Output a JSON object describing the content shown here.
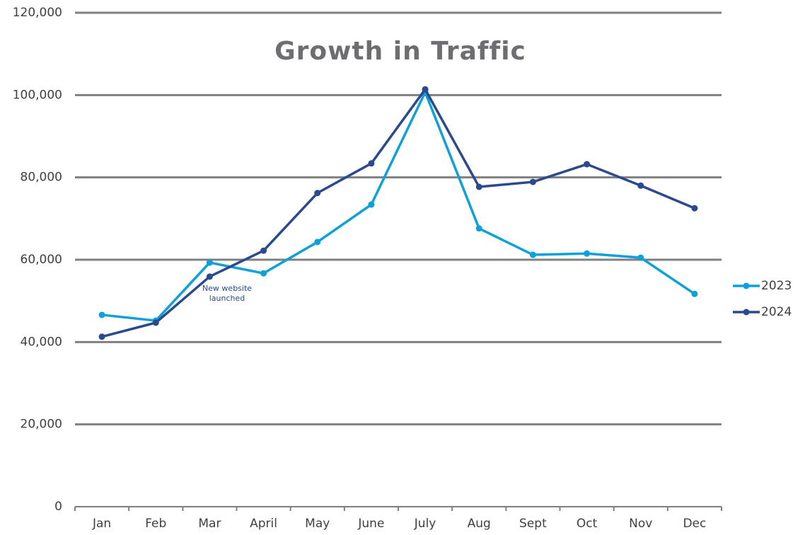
{
  "chart_data": {
    "type": "line",
    "title": "Growth in Traffic",
    "categories": [
      "Jan",
      "Feb",
      "Mar",
      "April",
      "May",
      "June",
      "July",
      "Aug",
      "Sept",
      "Oct",
      "Nov",
      "Dec"
    ],
    "series": [
      {
        "name": "2023",
        "color": "#0ea0d8",
        "values": [
          46600,
          45200,
          59300,
          56700,
          64300,
          73400,
          100700,
          67600,
          61200,
          61500,
          60500,
          51700
        ]
      },
      {
        "name": "2024",
        "color": "#2b4a8e",
        "values": [
          41300,
          44700,
          55900,
          62200,
          76200,
          83400,
          101400,
          77700,
          78900,
          83200,
          78000,
          72500
        ]
      }
    ],
    "annotation": [
      "New website",
      "launched"
    ],
    "ylim": [
      0,
      120000
    ],
    "yticks": [
      0,
      {
        "value": 20000,
        "label": "20,000"
      },
      {
        "value": 40000,
        "label": "40,000"
      },
      {
        "value": 60000,
        "label": "60,000"
      },
      {
        "value": 80000,
        "label": "80,000"
      },
      {
        "value": 100000,
        "label": "100,000"
      },
      {
        "value": 120000,
        "label": "120,000"
      }
    ],
    "grid": true,
    "legend": "right"
  }
}
